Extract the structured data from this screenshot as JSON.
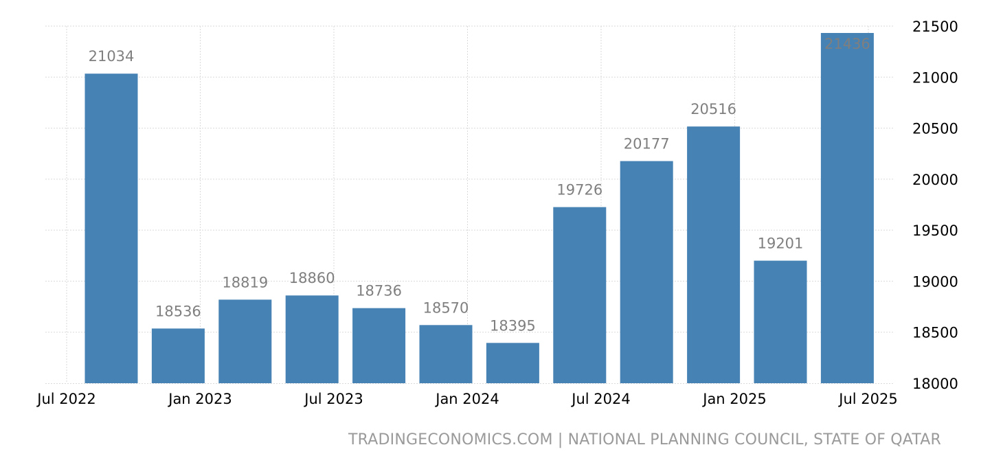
{
  "chart_data": {
    "type": "bar",
    "categories": [
      "Sep 2022",
      "Dec 2022",
      "Mar 2023",
      "Jun 2023",
      "Sep 2023",
      "Dec 2023",
      "Mar 2024",
      "Jun 2024",
      "Sep 2024",
      "Dec 2024",
      "Mar 2025",
      "Jun 2025"
    ],
    "values": [
      21034,
      18536,
      18819,
      18860,
      18736,
      18570,
      18395,
      19726,
      20177,
      20516,
      19201,
      21436
    ],
    "data_labels": [
      "21034",
      "18536",
      "18819",
      "18860",
      "18736",
      "18570",
      "18395",
      "19726",
      "20177",
      "20516",
      "19201",
      "21436"
    ],
    "x_ticks": [
      {
        "date": "2022-07-01",
        "label": "Jul 2022"
      },
      {
        "date": "2023-01-01",
        "label": "Jan 2023"
      },
      {
        "date": "2023-07-01",
        "label": "Jul 2023"
      },
      {
        "date": "2024-01-01",
        "label": "Jan 2024"
      },
      {
        "date": "2024-07-01",
        "label": "Jul 2024"
      },
      {
        "date": "2025-01-01",
        "label": "Jan 2025"
      },
      {
        "date": "2025-07-01",
        "label": "Jul 2025"
      }
    ],
    "y_ticks": [
      "18000",
      "18500",
      "19000",
      "19500",
      "20000",
      "20500",
      "21000",
      "21500"
    ],
    "ylim": [
      18000,
      21500
    ],
    "y_axis_position": "right",
    "grid": true,
    "bar_color": "#4682b4",
    "label_color": "#7f7f7f",
    "title": "",
    "xlabel": "",
    "ylabel": ""
  },
  "source_text": "TRADINGECONOMICS.COM | NATIONAL PLANNING COUNCIL, STATE OF QATAR"
}
